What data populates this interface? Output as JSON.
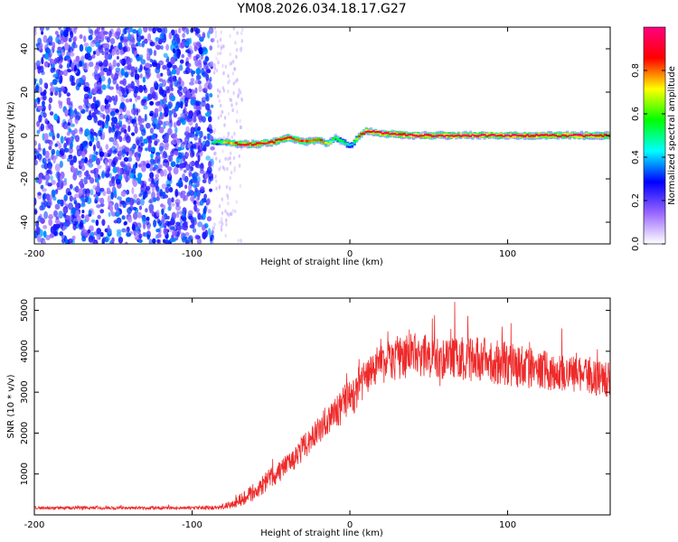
{
  "title": "YM08.2026.034.18.17.G27",
  "chart_data": [
    {
      "type": "heatmap",
      "title": "YM08.2026.034.18.17.G27",
      "xlabel": "Height of straight line (km)",
      "ylabel": "Frequency (Hz)",
      "xlim": [
        -200,
        165
      ],
      "ylim": [
        -50,
        50
      ],
      "xticks": [
        -200,
        -100,
        0,
        100
      ],
      "yticks": [
        -40,
        -20,
        0,
        20,
        40
      ],
      "colorbar": {
        "label": "Normalized spectral amplitude",
        "range": [
          0,
          1
        ],
        "ticks": [
          0.0,
          0.2,
          0.4,
          0.6,
          0.8
        ],
        "tick_labels": [
          "0.0",
          "0.2",
          "0.4",
          "0.6",
          "0.8"
        ],
        "colormap": [
          "#ffffff",
          "#9966ff",
          "#0000ff",
          "#00ffff",
          "#00ff00",
          "#ffff00",
          "#ff0000",
          "#ff0080"
        ]
      },
      "noise_region_x": [
        -200,
        -87
      ],
      "noise_fade_x": [
        -87,
        -68
      ],
      "signal_track": {
        "x": [
          -88,
          -80,
          -70,
          -60,
          -50,
          -40,
          -30,
          -20,
          -15,
          -10,
          -5,
          0,
          5,
          10,
          20,
          40,
          60,
          80,
          100,
          120,
          140,
          165
        ],
        "freq": [
          -3,
          -3,
          -4,
          -4,
          -3,
          -1,
          -3,
          -2,
          -4,
          -1,
          -3,
          -5,
          0,
          2,
          1,
          0,
          0,
          0,
          0,
          0,
          0,
          0
        ],
        "amplitude": [
          0.5,
          0.7,
          0.9,
          0.9,
          0.9,
          0.9,
          0.85,
          0.8,
          0.7,
          0.6,
          0.55,
          0.4,
          0.8,
          0.95,
          0.95,
          0.95,
          0.95,
          0.95,
          0.95,
          0.95,
          0.95,
          0.9
        ]
      }
    },
    {
      "type": "line",
      "xlabel": "Height of straight line (km)",
      "ylabel": "SNR (10 * v/v)",
      "xlim": [
        -200,
        165
      ],
      "ylim": [
        0,
        5300
      ],
      "xticks": [
        -200,
        -100,
        0,
        100
      ],
      "yticks": [
        1000,
        2000,
        3000,
        4000,
        5000
      ],
      "color": "#ee2a2a",
      "series": [
        {
          "name": "SNR",
          "x": [
            -200,
            -150,
            -100,
            -85,
            -75,
            -65,
            -55,
            -45,
            -35,
            -25,
            -15,
            -5,
            5,
            15,
            25,
            40,
            60,
            80,
            100,
            120,
            140,
            165
          ],
          "mean": [
            170,
            170,
            170,
            180,
            250,
            450,
            750,
            1050,
            1400,
            1850,
            2300,
            2650,
            3100,
            3550,
            3800,
            3900,
            3850,
            3800,
            3700,
            3550,
            3450,
            3300
          ],
          "spread": [
            70,
            70,
            70,
            90,
            200,
            350,
            450,
            500,
            550,
            600,
            700,
            800,
            900,
            950,
            1000,
            1000,
            1000,
            1000,
            1000,
            900,
            800,
            800
          ]
        }
      ]
    }
  ]
}
